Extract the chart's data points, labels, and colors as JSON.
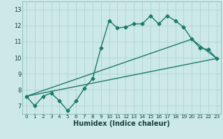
{
  "title": "",
  "xlabel": "Humidex (Indice chaleur)",
  "ylabel": "",
  "bg_color": "#cce8e8",
  "line_color": "#1a7a6a",
  "grid_color": "#aed4d4",
  "xlim": [
    -0.5,
    23.5
  ],
  "ylim": [
    6.5,
    13.5
  ],
  "xticks": [
    0,
    1,
    2,
    3,
    4,
    5,
    6,
    7,
    8,
    9,
    10,
    11,
    12,
    13,
    14,
    15,
    16,
    17,
    18,
    19,
    20,
    21,
    22,
    23
  ],
  "yticks": [
    7,
    8,
    9,
    10,
    11,
    12,
    13
  ],
  "line1_x": [
    0,
    1,
    2,
    3,
    4,
    5,
    6,
    7,
    8,
    9,
    10,
    11,
    12,
    13,
    14,
    15,
    16,
    17,
    18,
    19,
    20,
    21,
    22,
    23
  ],
  "line1_y": [
    7.6,
    7.0,
    7.6,
    7.8,
    7.3,
    6.7,
    7.3,
    8.1,
    8.7,
    10.6,
    12.3,
    11.85,
    11.9,
    12.1,
    12.1,
    12.6,
    12.1,
    12.6,
    12.3,
    11.9,
    11.15,
    10.6,
    10.5,
    9.95
  ],
  "line2_x": [
    0,
    23
  ],
  "line2_y": [
    7.6,
    9.95
  ],
  "line3_x": [
    0,
    20,
    23
  ],
  "line3_y": [
    7.6,
    11.15,
    9.95
  ],
  "marker": "D",
  "markersize": 2.5,
  "linewidth": 1.0,
  "xlabel_fontsize": 7,
  "xtick_fontsize": 5.2,
  "ytick_fontsize": 6.0
}
